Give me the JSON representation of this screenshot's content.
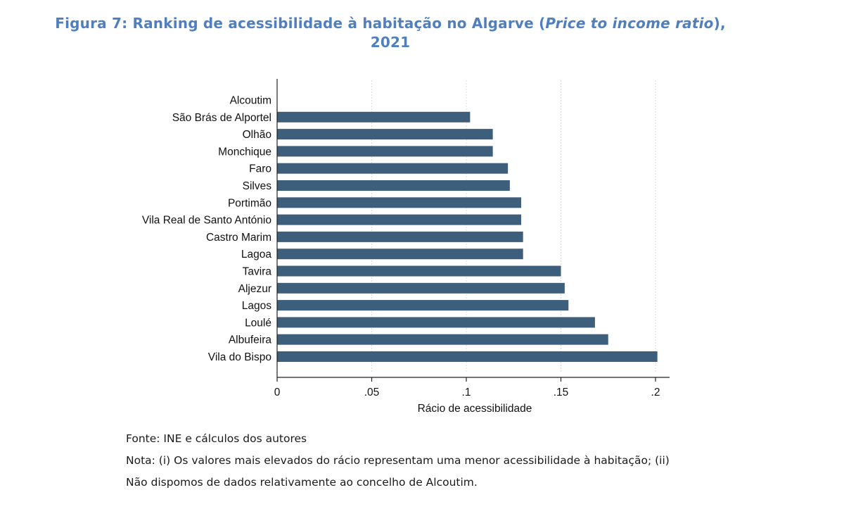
{
  "title": {
    "prefix": "Figura 7: Ranking de acessibilidade à habitação no Algarve (",
    "italic": "Price to income ratio",
    "suffix": "),",
    "line2": "2021"
  },
  "chart_data": {
    "type": "bar",
    "orientation": "horizontal",
    "categories": [
      "Alcoutim",
      "São Brás de Alportel",
      "Olhão",
      "Monchique",
      "Faro",
      "Silves",
      "Portimão",
      "Vila Real de Santo António",
      "Castro Marim",
      "Lagoa",
      "Tavira",
      "Aljezur",
      "Lagos",
      "Loulé",
      "Albufeira",
      "Vila do Bispo"
    ],
    "values": [
      null,
      0.102,
      0.114,
      0.114,
      0.122,
      0.123,
      0.129,
      0.129,
      0.13,
      0.13,
      0.15,
      0.152,
      0.154,
      0.168,
      0.175,
      0.201
    ],
    "xlabel": "Rácio de acessibilidade",
    "ylabel": "",
    "xlim": [
      0,
      0.2
    ],
    "xticks": [
      {
        "value": 0,
        "label": "0"
      },
      {
        "value": 0.05,
        "label": ".05"
      },
      {
        "value": 0.1,
        "label": ".1"
      },
      {
        "value": 0.15,
        "label": ".15"
      },
      {
        "value": 0.2,
        "label": ".2"
      }
    ],
    "grid": true,
    "bar_color": "#3d5f7c",
    "grid_color": "#dddddd"
  },
  "notes": {
    "source": "Fonte: INE e cálculos dos autores",
    "note1": "Nota: (i) Os valores mais elevados do rácio representam uma menor acessibilidade à habitação; (ii)",
    "note2": "Não dispomos de dados relativamente ao concelho de Alcoutim."
  }
}
